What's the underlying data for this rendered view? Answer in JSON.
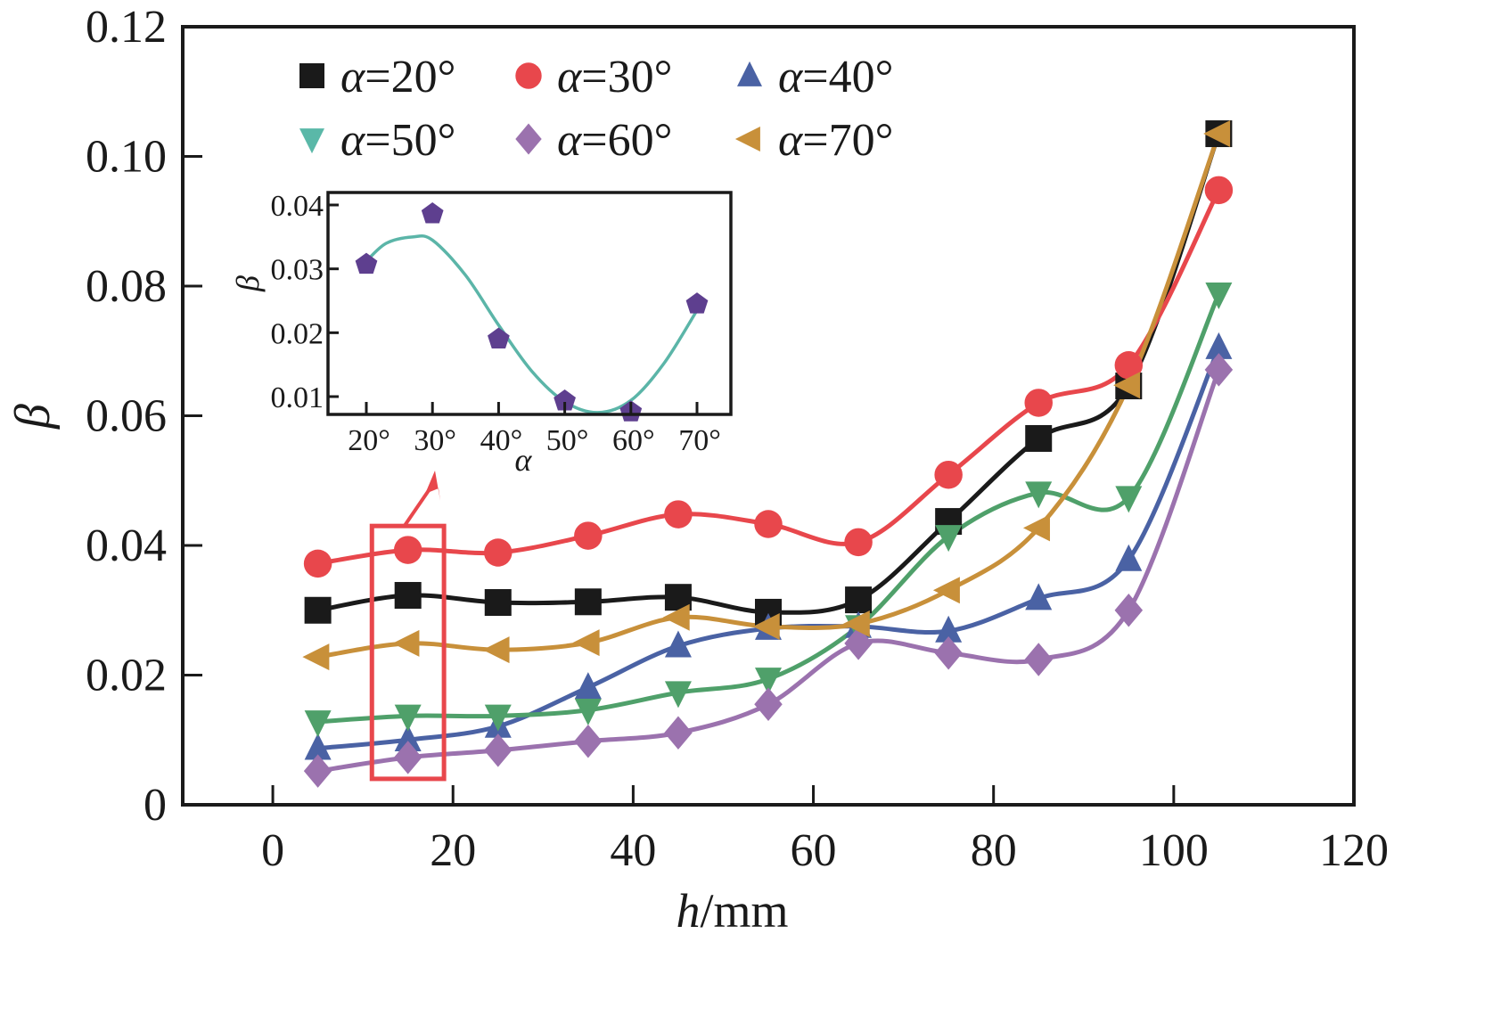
{
  "chart_data": [
    {
      "type": "line",
      "role": "main",
      "title": "",
      "xlabel": "h/mm",
      "xlabel_italic_part": "h",
      "xlabel_rest": "/mm",
      "ylabel": "β",
      "xlim": [
        -10,
        120
      ],
      "ylim": [
        0,
        0.12
      ],
      "xticks": [
        0,
        20,
        40,
        60,
        80,
        100,
        120
      ],
      "xtick_labels": [
        "0",
        "20",
        "40",
        "60",
        "80",
        "100",
        "120"
      ],
      "yticks": [
        0,
        0.02,
        0.04,
        0.06,
        0.08,
        0.1,
        0.12
      ],
      "ytick_labels": [
        "0",
        "0.02",
        "0.04",
        "0.06",
        "0.08",
        "0.10",
        "0.12"
      ],
      "grid": false,
      "legend_position": "top-left",
      "legend_columns": 3,
      "smooth_curves": true,
      "x": [
        5,
        15,
        25,
        35,
        45,
        55,
        65,
        75,
        85,
        95,
        105
      ],
      "series": [
        {
          "name": "α=20°",
          "symbol_label": "α",
          "value_label": "=20°",
          "marker": "square",
          "color": "#1a1a1a",
          "values": [
            0.03,
            0.0323,
            0.0312,
            0.0313,
            0.032,
            0.0297,
            0.0316,
            0.0437,
            0.0565,
            0.0646,
            0.1035
          ]
        },
        {
          "name": "α=30°",
          "symbol_label": "α",
          "value_label": "=30°",
          "marker": "circle",
          "color": "#e8474c",
          "values": [
            0.0372,
            0.0393,
            0.0389,
            0.0415,
            0.0448,
            0.0433,
            0.0405,
            0.0509,
            0.062,
            0.0678,
            0.0948
          ]
        },
        {
          "name": "α=40°",
          "symbol_label": "α",
          "value_label": "=40°",
          "marker": "triangle-up",
          "color": "#4a62a4",
          "values": [
            0.0087,
            0.01,
            0.0121,
            0.0181,
            0.0245,
            0.0272,
            0.0275,
            0.0268,
            0.0318,
            0.0378,
            0.0705
          ]
        },
        {
          "name": "α=50°",
          "symbol_label": "α",
          "value_label": "=50°",
          "marker": "triangle-down",
          "color": "#4fa06a",
          "legend_color": "#5ab8a8",
          "values": [
            0.0128,
            0.0137,
            0.0137,
            0.0146,
            0.0173,
            0.0194,
            0.0275,
            0.0414,
            0.0481,
            0.0474,
            0.0788
          ]
        },
        {
          "name": "α=60°",
          "symbol_label": "α",
          "value_label": "=60°",
          "marker": "diamond",
          "color": "#9b72ae",
          "values": [
            0.0052,
            0.0073,
            0.0084,
            0.0098,
            0.0111,
            0.0155,
            0.0249,
            0.0234,
            0.0224,
            0.03,
            0.0671
          ]
        },
        {
          "name": "α=70°",
          "symbol_label": "α",
          "value_label": "=70°",
          "marker": "triangle-left",
          "color": "#c8903a",
          "values": [
            0.0228,
            0.0249,
            0.0239,
            0.025,
            0.0289,
            0.0275,
            0.0279,
            0.0331,
            0.0427,
            0.0647,
            0.1035
          ]
        }
      ],
      "annotation": {
        "type": "highlight-box-with-arrow",
        "color": "#e8474c",
        "x_range": [
          11,
          19
        ],
        "y_range": [
          0.004,
          0.043
        ],
        "points_to": "inset"
      }
    },
    {
      "type": "scatter",
      "role": "inset",
      "title": "",
      "xlabel": "α",
      "ylabel": "β",
      "xlim": [
        15,
        75
      ],
      "ylim": [
        0.0018,
        0.0415
      ],
      "xticks": [
        20,
        30,
        40,
        50,
        60,
        70
      ],
      "xtick_labels": [
        "20°",
        "30°",
        "40°",
        "50°",
        "60°",
        "70°"
      ],
      "yticks": [
        0.01,
        0.02,
        0.03,
        0.04
      ],
      "ytick_labels": [
        "0.01",
        "0.02",
        "0.03",
        "0.04"
      ],
      "grid": false,
      "marker": "pentagon",
      "marker_color": "#5e3f8f",
      "fit_color": "#5bb5a8",
      "x": [
        20,
        30,
        40,
        50,
        60,
        70
      ],
      "values": [
        0.0307,
        0.0386,
        0.019,
        0.0093,
        0.0076,
        0.0245
      ],
      "fit_curve": {
        "description": "smooth fitted curve through inset points",
        "x": [
          20,
          23,
          27,
          30,
          35,
          40,
          45,
          50,
          55,
          60,
          65,
          70
        ],
        "values": [
          0.0312,
          0.034,
          0.035,
          0.0345,
          0.029,
          0.0212,
          0.014,
          0.0092,
          0.0075,
          0.0094,
          0.0152,
          0.0235
        ]
      }
    }
  ]
}
